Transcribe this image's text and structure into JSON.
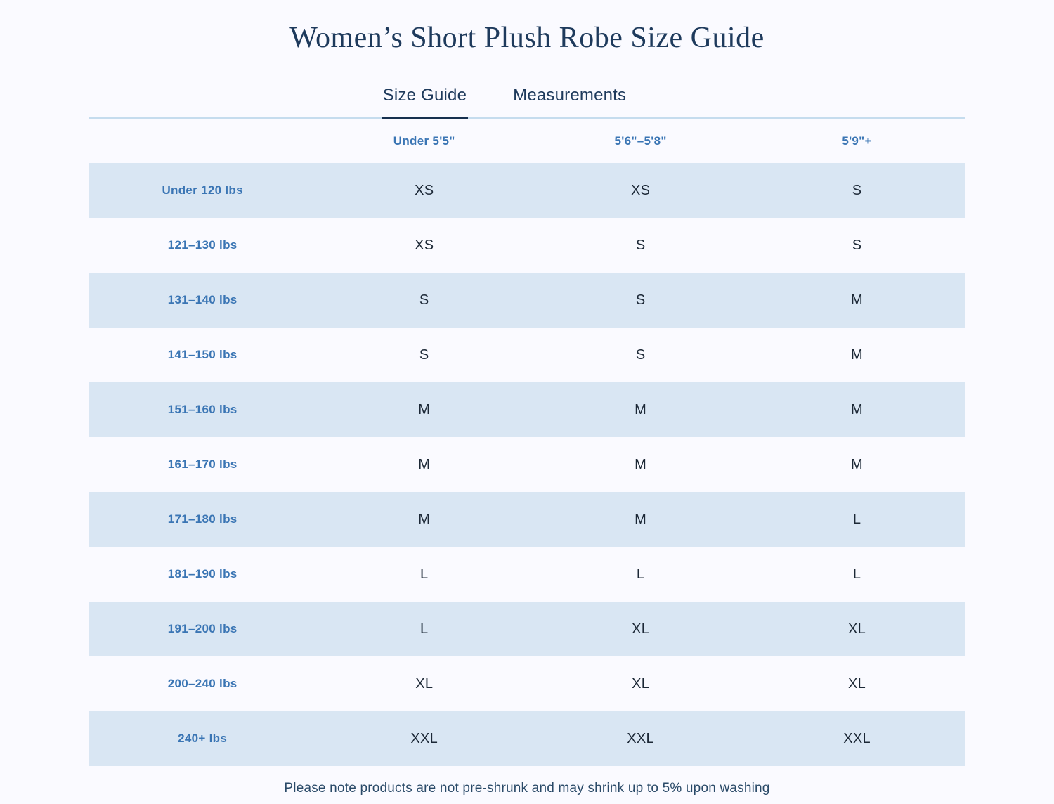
{
  "page": {
    "title": "Women’s Short Plush Robe Size Guide",
    "footnote": "Please note products are not pre-shrunk and may shrink up to 5% upon washing"
  },
  "tabs": [
    {
      "label": "Size Guide",
      "active": true
    },
    {
      "label": "Measurements",
      "active": false
    }
  ],
  "table": {
    "column_headers": [
      "Under 5'5\"",
      "5'6\"–5'8\"",
      "5'9\"+"
    ],
    "rows": [
      {
        "label": "Under 120 lbs",
        "sizes": [
          "XS",
          "XS",
          "S"
        ]
      },
      {
        "label": "121–130 lbs",
        "sizes": [
          "XS",
          "S",
          "S"
        ]
      },
      {
        "label": "131–140 lbs",
        "sizes": [
          "S",
          "S",
          "M"
        ]
      },
      {
        "label": "141–150 lbs",
        "sizes": [
          "S",
          "S",
          "M"
        ]
      },
      {
        "label": "151–160 lbs",
        "sizes": [
          "M",
          "M",
          "M"
        ]
      },
      {
        "label": "161–170 lbs",
        "sizes": [
          "M",
          "M",
          "M"
        ]
      },
      {
        "label": "171–180 lbs",
        "sizes": [
          "M",
          "M",
          "L"
        ]
      },
      {
        "label": "181–190 lbs",
        "sizes": [
          "L",
          "L",
          "L"
        ]
      },
      {
        "label": "191–200 lbs",
        "sizes": [
          "L",
          "XL",
          "XL"
        ]
      },
      {
        "label": "200–240 lbs",
        "sizes": [
          "XL",
          "XL",
          "XL"
        ]
      },
      {
        "label": "240+ lbs",
        "sizes": [
          "XXL",
          "XXL",
          "XXL"
        ]
      }
    ]
  },
  "colors": {
    "background": "#fafaff",
    "row_shade": "#d9e6f3",
    "accent_blue": "#3a75b4",
    "navy": "#1e3a5c",
    "value_text": "#1c2836",
    "divider": "#c5dcee",
    "active_tab_underline": "#16304f"
  }
}
